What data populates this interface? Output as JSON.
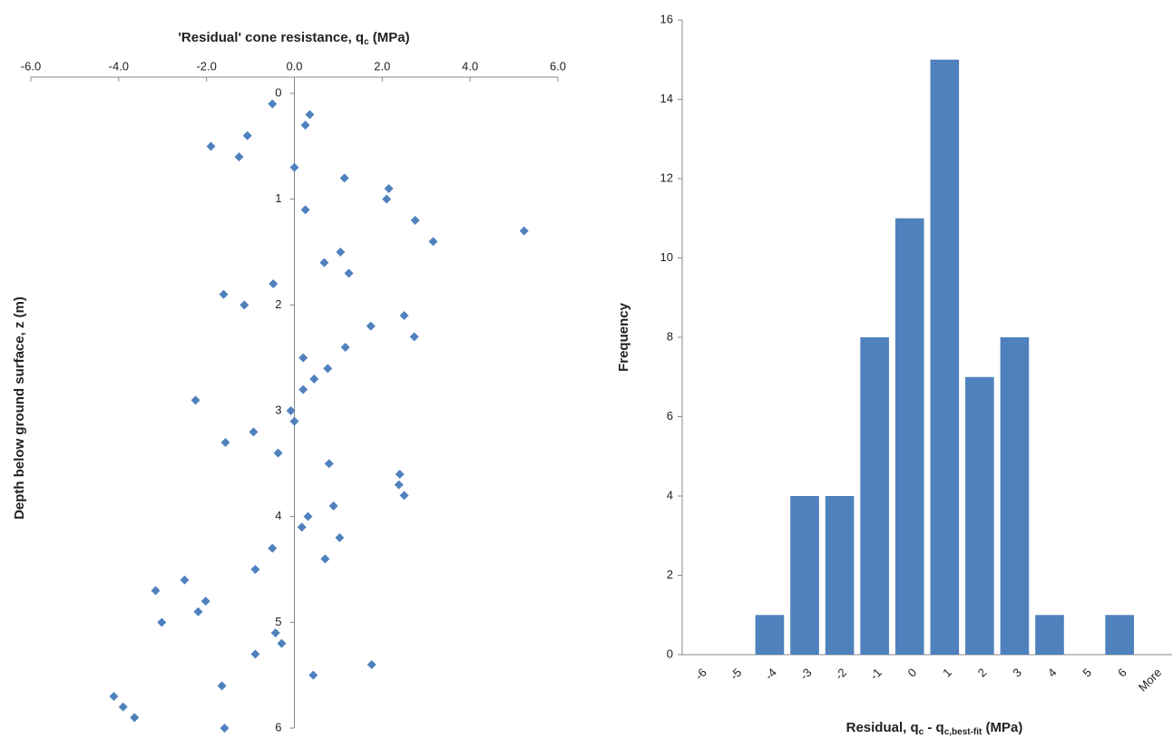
{
  "chart_data": [
    {
      "type": "scatter",
      "x_label": "'Residual' cone resistance, q",
      "x_label_sub": "c",
      "x_label_end": " (MPa)",
      "y_label": "Depth below ground surface, z (m)",
      "x_axis_position": "top",
      "y_reversed": true,
      "xlim": [
        -6,
        6
      ],
      "xticks": [
        {
          "value": -6,
          "label": "-6.0"
        },
        {
          "value": -4,
          "label": "-4.0"
        },
        {
          "value": -2,
          "label": "-2.0"
        },
        {
          "value": 0,
          "label": "0.0"
        },
        {
          "value": 2,
          "label": "2.0"
        },
        {
          "value": 4,
          "label": "4.0"
        },
        {
          "value": 6,
          "label": "6.0"
        }
      ],
      "ylim": [
        0,
        6
      ],
      "yticks": [
        0,
        1,
        2,
        3,
        4,
        5,
        6
      ],
      "series": [
        {
          "color": "#4f81bd",
          "x": [
            -0.5,
            0.35,
            0.25,
            -1.07,
            -1.9,
            -1.26,
            0,
            1.14,
            2.15,
            2.1,
            0.25,
            2.75,
            5.23,
            3.16,
            1.05,
            0.68,
            1.24,
            -0.48,
            -1.61,
            -1.14,
            2.5,
            1.74,
            2.73,
            1.16,
            0.2,
            0.76,
            0.45,
            0.2,
            -2.25,
            -0.08,
            0,
            -0.93,
            -1.57,
            -0.37,
            0.79,
            2.4,
            2.38,
            2.5,
            0.89,
            0.31,
            0.17,
            1.03,
            -0.5,
            0.7,
            -0.89,
            -2.5,
            -3.16,
            -2.02,
            -2.19,
            -3.02,
            -0.43,
            -0.29,
            -0.89,
            1.76,
            0.43,
            -1.65,
            -4.11,
            -3.9,
            -3.64,
            -1.59
          ],
          "values": [
            0.1,
            0.2,
            0.3,
            0.4,
            0.5,
            0.6,
            0.7,
            0.8,
            0.9,
            1.0,
            1.1,
            1.2,
            1.3,
            1.4,
            1.5,
            1.6,
            1.7,
            1.8,
            1.9,
            2.0,
            2.1,
            2.2,
            2.3,
            2.4,
            2.5,
            2.6,
            2.7,
            2.8,
            2.9,
            3.0,
            3.1,
            3.2,
            3.3,
            3.4,
            3.5,
            3.6,
            3.7,
            3.8,
            3.9,
            4.0,
            4.1,
            4.2,
            4.3,
            4.4,
            4.5,
            4.6,
            4.7,
            4.8,
            4.9,
            5.0,
            5.1,
            5.2,
            5.3,
            5.4,
            5.5,
            5.6,
            5.7,
            5.8,
            5.9,
            6.0
          ]
        }
      ]
    },
    {
      "type": "bar",
      "x_label": "Residual, q",
      "x_label_sub": "c",
      "x_label_mid": " - q",
      "x_label_sub2": "c,best-fit",
      "x_label_end": " (MPa)",
      "y_label": "Frequency",
      "categories": [
        "-6",
        "-5",
        "-4",
        "-3",
        "-2",
        "-1",
        "0",
        "1",
        "2",
        "3",
        "4",
        "5",
        "6",
        "More"
      ],
      "values": [
        0,
        0,
        1,
        4,
        4,
        8,
        11,
        15,
        7,
        8,
        1,
        0,
        1,
        0
      ],
      "color": "#4f81bd",
      "ylim": [
        0,
        16
      ],
      "yticks": [
        0,
        2,
        4,
        6,
        8,
        10,
        12,
        14,
        16
      ]
    }
  ]
}
